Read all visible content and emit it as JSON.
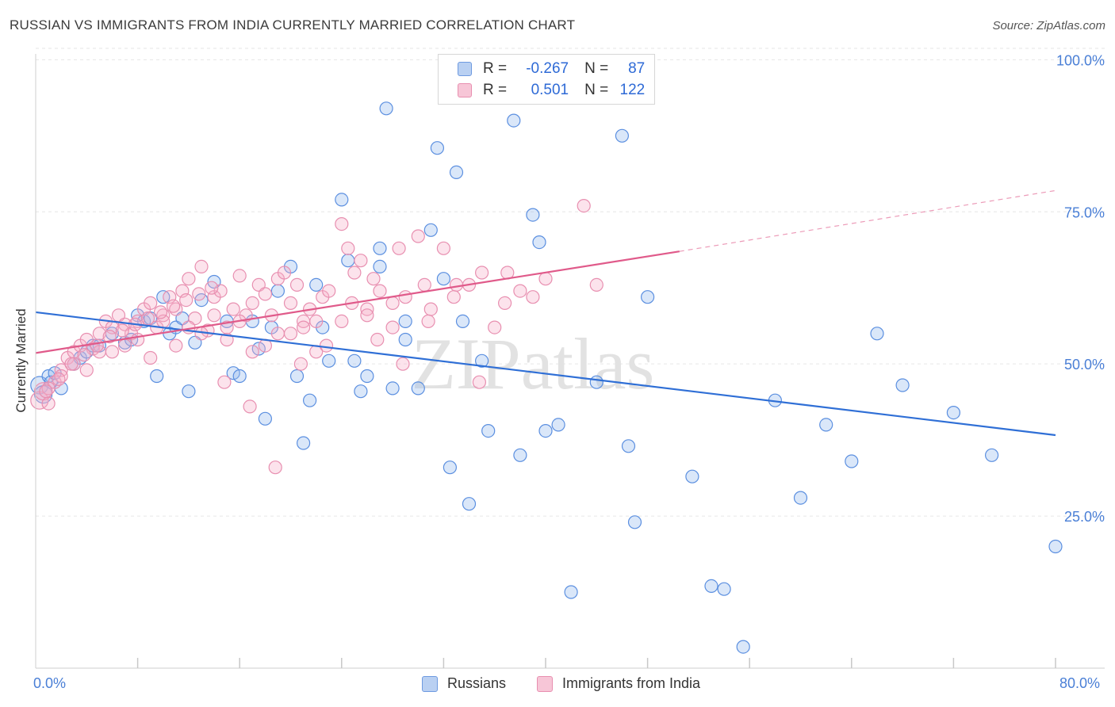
{
  "title": "RUSSIAN VS IMMIGRANTS FROM INDIA CURRENTLY MARRIED CORRELATION CHART",
  "source": "Source: ZipAtlas.com",
  "watermark": "ZIPatlas",
  "legend": {
    "rows": [
      {
        "r_label": "R =",
        "r_value": "-0.267",
        "n_label": "N =",
        "n_value": "87"
      },
      {
        "r_label": "R =",
        "r_value": "0.501",
        "n_label": "N =",
        "n_value": "122"
      }
    ]
  },
  "bottom_legend": [
    "Russians",
    "Immigrants from India"
  ],
  "chart_data": {
    "type": "scatter",
    "title": "RUSSIAN VS IMMIGRANTS FROM INDIA CURRENTLY MARRIED CORRELATION CHART",
    "xlabel": "",
    "ylabel": "Currently Married",
    "xlim": [
      0,
      80
    ],
    "ylim": [
      0,
      102
    ],
    "x_tick_labels": [
      "0.0%",
      "80.0%"
    ],
    "y_ticks": [
      25,
      50,
      75,
      100
    ],
    "y_tick_labels": [
      "25.0%",
      "50.0%",
      "75.0%",
      "100.0%"
    ],
    "grid": true,
    "legend_position": "top-center",
    "colors": {
      "russians": "#5b8fe0",
      "india": "#ec8fb0",
      "russians_line": "#2f6fd6",
      "india_line": "#e05a8a",
      "tick_text": "#4a7fd6"
    },
    "series": [
      {
        "name": "Russians",
        "r": -0.267,
        "n": 87,
        "trend": {
          "x": [
            0,
            80
          ],
          "y": [
            58.5,
            38.3
          ]
        },
        "points": [
          [
            0.3,
            46.5
          ],
          [
            0.6,
            45
          ],
          [
            1,
            48
          ],
          [
            1.2,
            47
          ],
          [
            1.5,
            48.5
          ],
          [
            2,
            46
          ],
          [
            3,
            50
          ],
          [
            3.5,
            51
          ],
          [
            4,
            52
          ],
          [
            4.5,
            53
          ],
          [
            5,
            53
          ],
          [
            6,
            55
          ],
          [
            7,
            53.5
          ],
          [
            7.5,
            54
          ],
          [
            8,
            58
          ],
          [
            8.5,
            57
          ],
          [
            9,
            57.5
          ],
          [
            9.5,
            48
          ],
          [
            10,
            61
          ],
          [
            10.5,
            55
          ],
          [
            11,
            56
          ],
          [
            11.5,
            57.5
          ],
          [
            12,
            45.5
          ],
          [
            12.5,
            53.5
          ],
          [
            13,
            60.5
          ],
          [
            14,
            63.5
          ],
          [
            15,
            57
          ],
          [
            15.5,
            48.5
          ],
          [
            16,
            48
          ],
          [
            17,
            57
          ],
          [
            17.5,
            52.5
          ],
          [
            18,
            41
          ],
          [
            18.5,
            56
          ],
          [
            19,
            62
          ],
          [
            20,
            66
          ],
          [
            20.5,
            48
          ],
          [
            21,
            37
          ],
          [
            21.5,
            44
          ],
          [
            22,
            63
          ],
          [
            22.5,
            56
          ],
          [
            23,
            50.5
          ],
          [
            24,
            77
          ],
          [
            24.5,
            67
          ],
          [
            25,
            50.5
          ],
          [
            25.5,
            45.5
          ],
          [
            26,
            48
          ],
          [
            27,
            69
          ],
          [
            27,
            66
          ],
          [
            27.5,
            92
          ],
          [
            28,
            46
          ],
          [
            29,
            57
          ],
          [
            29,
            54
          ],
          [
            30,
            46
          ],
          [
            31,
            72
          ],
          [
            31.5,
            85.5
          ],
          [
            32,
            64
          ],
          [
            32.5,
            33
          ],
          [
            33,
            81.5
          ],
          [
            33.5,
            57
          ],
          [
            34,
            27
          ],
          [
            35,
            50.5
          ],
          [
            35.5,
            39
          ],
          [
            37.5,
            90
          ],
          [
            38,
            35
          ],
          [
            39,
            74.5
          ],
          [
            39.5,
            70
          ],
          [
            40,
            39
          ],
          [
            41,
            40
          ],
          [
            42,
            12.5
          ],
          [
            44,
            47
          ],
          [
            46,
            87.5
          ],
          [
            46.5,
            36.5
          ],
          [
            47,
            24
          ],
          [
            48,
            61
          ],
          [
            51.5,
            31.5
          ],
          [
            53,
            13.5
          ],
          [
            54,
            13
          ],
          [
            55.5,
            3.5
          ],
          [
            58,
            44
          ],
          [
            60,
            28
          ],
          [
            62,
            40
          ],
          [
            64,
            34
          ],
          [
            66,
            55
          ],
          [
            68,
            46.5
          ],
          [
            72,
            42
          ],
          [
            75,
            35
          ],
          [
            80,
            20
          ]
        ]
      },
      {
        "name": "Immigrants from India",
        "r": 0.501,
        "n": 122,
        "trend": {
          "x": [
            0,
            50.5
          ],
          "y": [
            51.8,
            68.5
          ]
        },
        "trend_dashed": {
          "x": [
            50.5,
            80
          ],
          "y": [
            68.5,
            78.5
          ]
        },
        "points": [
          [
            0.3,
            44
          ],
          [
            0.6,
            45.5
          ],
          [
            1,
            43.5
          ],
          [
            1.5,
            47
          ],
          [
            2,
            49
          ],
          [
            2.5,
            51
          ],
          [
            3,
            52
          ],
          [
            3.5,
            53
          ],
          [
            4,
            54
          ],
          [
            4.5,
            52.5
          ],
          [
            5,
            55
          ],
          [
            5.5,
            57
          ],
          [
            6,
            56
          ],
          [
            6.5,
            58
          ],
          [
            7,
            56.5
          ],
          [
            7.5,
            55
          ],
          [
            8,
            57
          ],
          [
            8.5,
            59
          ],
          [
            9,
            60
          ],
          [
            9.5,
            56
          ],
          [
            10,
            58
          ],
          [
            10.5,
            61
          ],
          [
            11,
            59
          ],
          [
            11.5,
            62
          ],
          [
            12,
            64
          ],
          [
            12.5,
            57.5
          ],
          [
            13,
            66
          ],
          [
            13.5,
            55.5
          ],
          [
            14,
            61
          ],
          [
            14.5,
            62
          ],
          [
            15,
            56
          ],
          [
            15.5,
            59
          ],
          [
            16,
            64.5
          ],
          [
            16.5,
            58
          ],
          [
            17,
            60
          ],
          [
            17.5,
            63
          ],
          [
            18,
            61.5
          ],
          [
            18.5,
            58
          ],
          [
            19,
            64
          ],
          [
            19.5,
            65
          ],
          [
            20,
            60
          ],
          [
            20.5,
            63
          ],
          [
            21,
            57
          ],
          [
            21.5,
            59
          ],
          [
            22,
            52
          ],
          [
            22.5,
            61
          ],
          [
            23,
            62
          ],
          [
            24,
            73
          ],
          [
            24.5,
            69
          ],
          [
            25,
            65
          ],
          [
            25.5,
            67
          ],
          [
            26,
            59
          ],
          [
            26.5,
            64
          ],
          [
            27,
            62
          ],
          [
            28,
            60
          ],
          [
            28.5,
            69
          ],
          [
            29,
            61
          ],
          [
            30,
            71
          ],
          [
            30.5,
            63
          ],
          [
            31,
            59
          ],
          [
            32,
            69
          ],
          [
            33,
            63
          ],
          [
            34,
            63
          ],
          [
            35,
            65
          ],
          [
            36,
            56
          ],
          [
            37,
            65
          ],
          [
            38,
            62
          ],
          [
            39,
            61
          ],
          [
            40,
            64
          ],
          [
            43,
            76
          ],
          [
            44,
            63
          ],
          [
            3,
            50
          ],
          [
            5,
            52
          ],
          [
            7,
            53
          ],
          [
            9,
            51
          ],
          [
            11,
            53
          ],
          [
            13,
            55
          ],
          [
            15,
            54
          ],
          [
            17,
            52
          ],
          [
            19,
            55
          ],
          [
            21,
            56
          ],
          [
            8,
            54
          ],
          [
            10,
            57
          ],
          [
            12,
            56
          ],
          [
            14,
            58
          ],
          [
            16,
            57
          ],
          [
            18,
            53
          ],
          [
            20,
            55
          ],
          [
            22,
            57
          ],
          [
            24,
            57
          ],
          [
            26,
            58
          ],
          [
            28,
            56
          ],
          [
            6,
            52
          ],
          [
            4,
            49
          ],
          [
            2,
            48
          ],
          [
            1,
            46
          ],
          [
            0.8,
            45.5
          ],
          [
            1.8,
            47.5
          ],
          [
            2.8,
            50
          ],
          [
            3.8,
            51.5
          ],
          [
            4.8,
            53
          ],
          [
            5.8,
            54.5
          ],
          [
            6.8,
            55.5
          ],
          [
            7.8,
            56.5
          ],
          [
            8.8,
            57.5
          ],
          [
            9.8,
            58.5
          ],
          [
            10.8,
            59.5
          ],
          [
            11.8,
            60.5
          ],
          [
            12.8,
            61.5
          ],
          [
            13.8,
            62.5
          ],
          [
            14.8,
            47
          ],
          [
            16.8,
            43
          ],
          [
            18.8,
            33
          ],
          [
            20.8,
            50
          ],
          [
            22.8,
            53
          ],
          [
            24.8,
            60
          ],
          [
            26.8,
            54
          ],
          [
            28.8,
            50
          ],
          [
            30.8,
            57
          ],
          [
            32.8,
            61
          ],
          [
            34.8,
            47
          ],
          [
            36.8,
            60
          ]
        ]
      }
    ]
  }
}
